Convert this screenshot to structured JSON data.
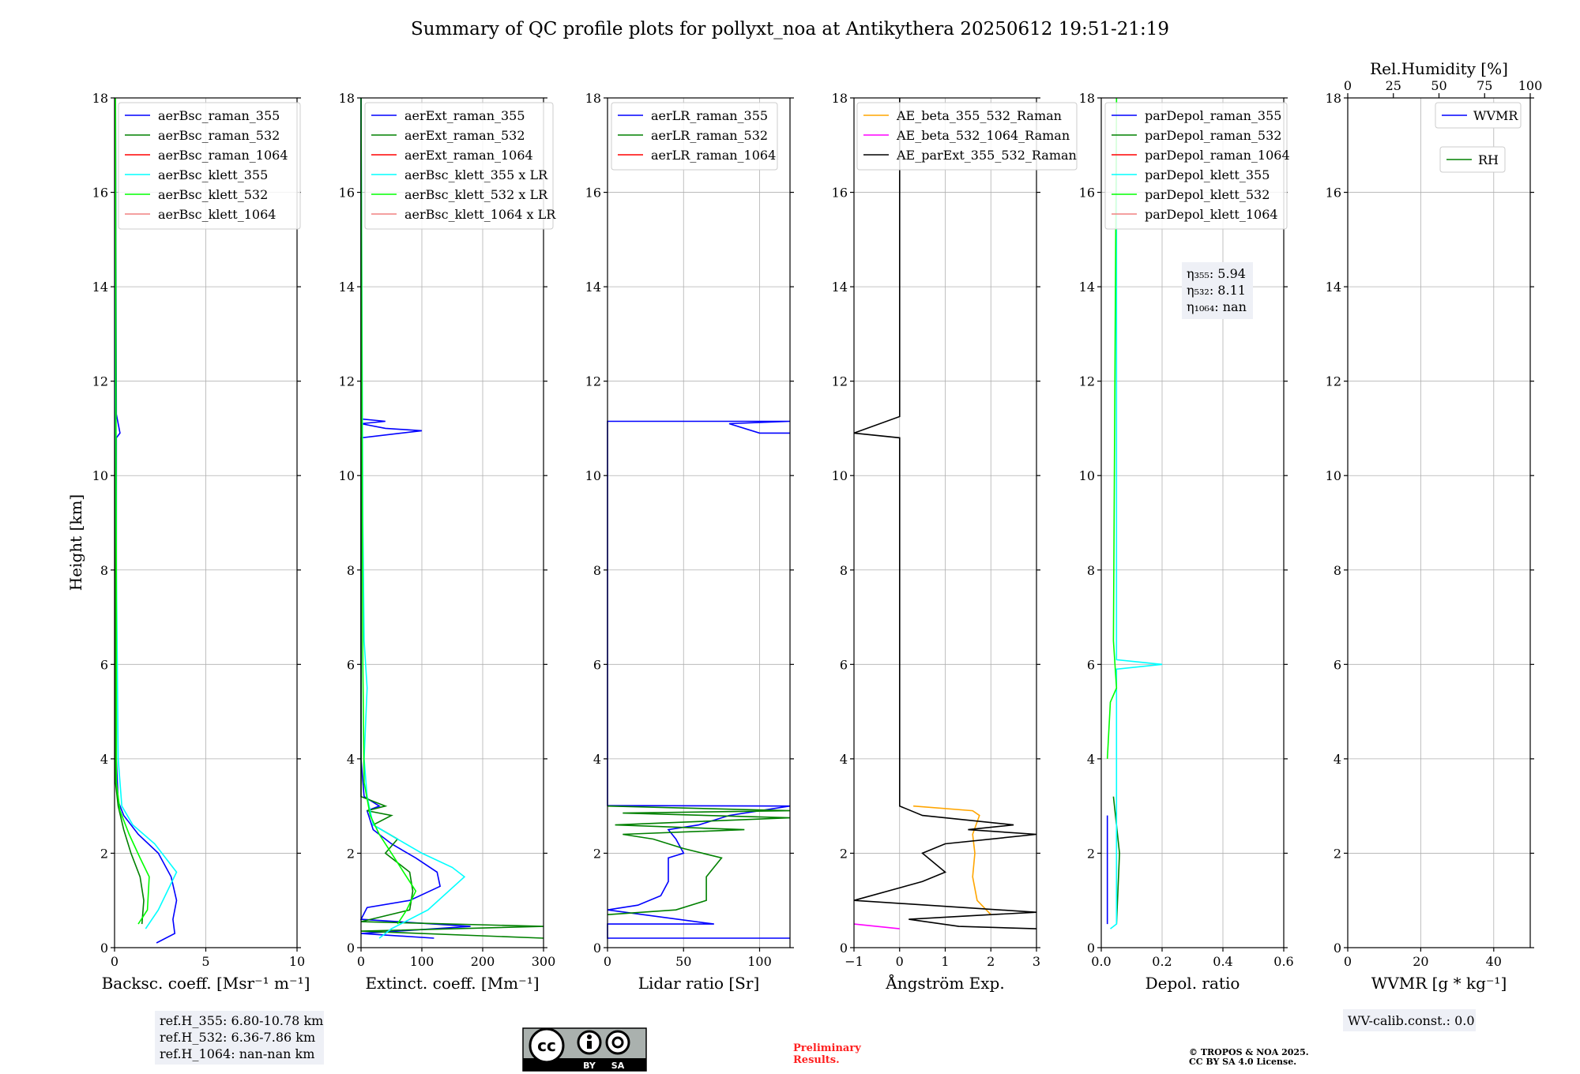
{
  "title": "Summary of QC profile plots for pollyxt_noa at Antikythera 20250612 19:51-21:19",
  "ylabel": "Height [km]",
  "y_ticks": [
    "0",
    "2",
    "4",
    "6",
    "8",
    "10",
    "12",
    "14",
    "16",
    "18"
  ],
  "ylim": [
    0,
    18
  ],
  "colors": {
    "raman_355": "#0000ff",
    "raman_532": "#008000",
    "raman_1064": "#ff0000",
    "klett_355": "#00ffff",
    "klett_532": "#00ff00",
    "klett_1064": "#f08080",
    "ae_beta_355_532": "#ffa500",
    "ae_beta_532_1064": "#ff00ff",
    "ae_parext": "#000000",
    "preliminary": "#ff0000"
  },
  "chart_data": [
    {
      "type": "line",
      "xlabel": "Backsc. coeff. [Msr⁻¹ m⁻¹]",
      "xlim": [
        0,
        10
      ],
      "x_ticks": [
        "0",
        "5",
        "10"
      ],
      "legend": [
        "aerBsc_raman_355",
        "aerBsc_raman_532",
        "aerBsc_raman_1064",
        "aerBsc_klett_355",
        "aerBsc_klett_532",
        "aerBsc_klett_1064"
      ],
      "series": [
        {
          "name": "aerBsc_raman_355",
          "color": "raman_355",
          "points": [
            [
              2.3,
              0.1
            ],
            [
              3.3,
              0.3
            ],
            [
              3.2,
              0.6
            ],
            [
              3.4,
              1.0
            ],
            [
              3.1,
              1.5
            ],
            [
              2.4,
              2.0
            ],
            [
              1.3,
              2.4
            ],
            [
              0.5,
              2.8
            ],
            [
              0.2,
              3.1
            ],
            [
              0.1,
              4
            ],
            [
              0.1,
              10.8
            ],
            [
              0.3,
              10.9
            ],
            [
              0.2,
              11.1
            ],
            [
              0.1,
              11.3
            ],
            [
              0.05,
              18
            ]
          ]
        },
        {
          "name": "aerBsc_raman_532",
          "color": "raman_532",
          "points": [
            [
              1.5,
              0.5
            ],
            [
              1.6,
              1.0
            ],
            [
              1.4,
              1.5
            ],
            [
              0.9,
              2.0
            ],
            [
              0.5,
              2.5
            ],
            [
              0.2,
              3.0
            ],
            [
              0.05,
              3.5
            ],
            [
              0.05,
              18
            ]
          ]
        },
        {
          "name": "aerBsc_klett_355",
          "color": "klett_355",
          "points": [
            [
              1.7,
              0.4
            ],
            [
              2.4,
              0.8
            ],
            [
              3.4,
              1.6
            ],
            [
              2.2,
              2.2
            ],
            [
              1.0,
              2.6
            ],
            [
              0.4,
              3.0
            ],
            [
              0.2,
              4.0
            ],
            [
              0.15,
              6.0
            ],
            [
              0.1,
              8.0
            ],
            [
              0.05,
              12.0
            ],
            [
              0.05,
              18
            ]
          ]
        },
        {
          "name": "aerBsc_klett_532",
          "color": "klett_532",
          "points": [
            [
              1.3,
              0.5
            ],
            [
              1.8,
              0.8
            ],
            [
              1.9,
              1.5
            ],
            [
              1.4,
              1.9
            ],
            [
              0.8,
              2.4
            ],
            [
              0.3,
              2.9
            ],
            [
              0.1,
              3.5
            ],
            [
              0.1,
              7.0
            ],
            [
              0.05,
              18
            ]
          ]
        }
      ],
      "annotation": [
        "ref.H_355: 6.80-10.78 km",
        "ref.H_532: 6.36-7.86 km",
        "ref.H_1064: nan-nan km"
      ]
    },
    {
      "type": "line",
      "xlabel": "Extinct. coeff. [Mm⁻¹]",
      "xlim": [
        0,
        300
      ],
      "x_ticks": [
        "0",
        "100",
        "200",
        "300"
      ],
      "legend": [
        "aerExt_raman_355",
        "aerExt_raman_532",
        "aerExt_raman_1064",
        "aerBsc_klett_355 x LR",
        "aerBsc_klett_532 x LR",
        "aerBsc_klett_1064 x LR"
      ],
      "series": [
        {
          "name": "aerExt_raman_355",
          "color": "raman_355",
          "points": [
            [
              120,
              0.2
            ],
            [
              0,
              0.3
            ],
            [
              180,
              0.45
            ],
            [
              0,
              0.6
            ],
            [
              10,
              0.85
            ],
            [
              80,
              1.0
            ],
            [
              130,
              1.3
            ],
            [
              125,
              1.6
            ],
            [
              90,
              1.9
            ],
            [
              50,
              2.2
            ],
            [
              20,
              2.5
            ],
            [
              10,
              2.9
            ],
            [
              30,
              3.0
            ],
            [
              5,
              3.2
            ],
            [
              0,
              4.0
            ],
            [
              0,
              10.8
            ],
            [
              100,
              10.95
            ],
            [
              40,
              11.0
            ],
            [
              0,
              11.1
            ],
            [
              40,
              11.15
            ],
            [
              0,
              11.2
            ],
            [
              0,
              18
            ]
          ]
        },
        {
          "name": "aerExt_raman_532",
          "color": "raman_532",
          "points": [
            [
              300,
              0.2
            ],
            [
              0,
              0.35
            ],
            [
              300,
              0.45
            ],
            [
              0,
              0.55
            ],
            [
              80,
              0.8
            ],
            [
              85,
              1.2
            ],
            [
              80,
              1.6
            ],
            [
              40,
              2.0
            ],
            [
              60,
              2.3
            ],
            [
              20,
              2.6
            ],
            [
              50,
              2.8
            ],
            [
              10,
              2.9
            ],
            [
              40,
              3.0
            ],
            [
              0,
              3.2
            ],
            [
              0,
              18
            ]
          ]
        },
        {
          "name": "aerBsc_klett_355 x LR",
          "color": "klett_355",
          "points": [
            [
              30,
              0.2
            ],
            [
              50,
              0.4
            ],
            [
              110,
              0.8
            ],
            [
              170,
              1.5
            ],
            [
              150,
              1.7
            ],
            [
              100,
              2.0
            ],
            [
              20,
              2.6
            ],
            [
              10,
              3.2
            ],
            [
              5,
              4.0
            ],
            [
              10,
              5.5
            ],
            [
              5,
              6.5
            ],
            [
              3,
              9.0
            ],
            [
              0,
              18
            ]
          ]
        },
        {
          "name": "aerBsc_klett_532 x LR",
          "color": "klett_532",
          "points": [
            [
              60,
              0.5
            ],
            [
              75,
              0.8
            ],
            [
              90,
              1.2
            ],
            [
              70,
              1.6
            ],
            [
              50,
              2.0
            ],
            [
              30,
              2.4
            ],
            [
              15,
              2.8
            ],
            [
              5,
              3.5
            ],
            [
              3,
              6.0
            ],
            [
              0,
              18
            ]
          ]
        }
      ]
    },
    {
      "type": "line",
      "xlabel": "Lidar ratio [Sr]",
      "xlim": [
        0,
        120
      ],
      "x_ticks": [
        "0",
        "50",
        "100"
      ],
      "legend": [
        "aerLR_raman_355",
        "aerLR_raman_532",
        "aerLR_raman_1064"
      ],
      "series": [
        {
          "name": "aerLR_raman_355",
          "color": "raman_355",
          "points": [
            [
              120,
              0.2
            ],
            [
              0,
              0.2
            ],
            [
              0,
              0.5
            ],
            [
              70,
              0.5
            ],
            [
              0,
              0.8
            ],
            [
              20,
              0.9
            ],
            [
              35,
              1.1
            ],
            [
              40,
              1.4
            ],
            [
              40,
              1.9
            ],
            [
              50,
              2.0
            ],
            [
              45,
              2.3
            ],
            [
              40,
              2.5
            ],
            [
              60,
              2.6
            ],
            [
              80,
              2.8
            ],
            [
              120,
              3.0
            ],
            [
              120,
              3.0
            ],
            [
              0,
              3.01
            ],
            [
              0,
              11.15
            ],
            [
              120,
              11.15
            ],
            [
              80,
              11.1
            ],
            [
              100,
              10.9
            ],
            [
              120,
              10.9
            ]
          ]
        },
        {
          "name": "aerLR_raman_532",
          "color": "raman_532",
          "points": [
            [
              0,
              0.7
            ],
            [
              45,
              0.8
            ],
            [
              65,
              1.0
            ],
            [
              65,
              1.5
            ],
            [
              75,
              1.9
            ],
            [
              50,
              2.1
            ],
            [
              30,
              2.3
            ],
            [
              10,
              2.4
            ],
            [
              90,
              2.5
            ],
            [
              5,
              2.6
            ],
            [
              120,
              2.75
            ],
            [
              10,
              2.85
            ],
            [
              120,
              2.9
            ],
            [
              0,
              3.0
            ]
          ]
        }
      ]
    },
    {
      "type": "line",
      "xlabel": "Ångström Exp.",
      "xlim": [
        -1,
        3
      ],
      "x_ticks": [
        "−1",
        "0",
        "1",
        "2",
        "3"
      ],
      "legend": [
        "AE_beta_355_532_Raman",
        "AE_beta_532_1064_Raman",
        "AE_parExt_355_532_Raman"
      ],
      "series": [
        {
          "name": "AE_beta_355_532_Raman",
          "color": "ae_beta_355_532",
          "points": [
            [
              2.0,
              0.7
            ],
            [
              1.7,
              1.0
            ],
            [
              1.6,
              1.5
            ],
            [
              1.65,
              2.0
            ],
            [
              1.6,
              2.4
            ],
            [
              1.75,
              2.8
            ],
            [
              1.6,
              2.9
            ],
            [
              0.3,
              3.0
            ]
          ]
        },
        {
          "name": "AE_beta_532_1064_Raman",
          "color": "ae_beta_532_1064",
          "points": [
            [
              -1.0,
              0.5
            ],
            [
              0.0,
              0.4
            ]
          ]
        },
        {
          "name": "AE_parExt_355_532_Raman",
          "color": "ae_parext",
          "points": [
            [
              3.0,
              0.4
            ],
            [
              1.3,
              0.45
            ],
            [
              0.2,
              0.6
            ],
            [
              2.0,
              0.7
            ],
            [
              3.0,
              0.75
            ],
            [
              -1.0,
              1.0
            ],
            [
              0.5,
              1.4
            ],
            [
              1.0,
              1.6
            ],
            [
              0.5,
              2.0
            ],
            [
              1.0,
              2.2
            ],
            [
              3.0,
              2.4
            ],
            [
              1.5,
              2.5
            ],
            [
              2.5,
              2.6
            ],
            [
              0.5,
              2.8
            ],
            [
              0.0,
              3.0
            ],
            [
              0,
              3.0
            ],
            [
              0,
              10.8
            ],
            [
              -1.0,
              10.9
            ],
            [
              0,
              11.25
            ],
            [
              0,
              18
            ]
          ]
        }
      ]
    },
    {
      "type": "line",
      "xlabel": "Depol. ratio",
      "xlim": [
        0.0,
        0.6
      ],
      "x_ticks": [
        "0.0",
        "0.2",
        "0.4",
        "0.6"
      ],
      "legend": [
        "parDepol_raman_355",
        "parDepol_raman_532",
        "parDepol_raman_1064",
        "parDepol_klett_355",
        "parDepol_klett_532",
        "parDepol_klett_1064"
      ],
      "series": [
        {
          "name": "parDepol_raman_355",
          "color": "raman_355",
          "points": [
            [
              0.02,
              0.5
            ],
            [
              0.02,
              2.8
            ]
          ]
        },
        {
          "name": "parDepol_raman_532",
          "color": "raman_532",
          "points": [
            [
              0.05,
              0.5
            ],
            [
              0.06,
              2.0
            ],
            [
              0.04,
              3.2
            ]
          ]
        },
        {
          "name": "parDepol_klett_355",
          "color": "klett_355",
          "points": [
            [
              0.03,
              0.4
            ],
            [
              0.05,
              0.5
            ],
            [
              0.05,
              5.9
            ],
            [
              0.2,
              6.0
            ],
            [
              0.05,
              6.1
            ],
            [
              0.05,
              18
            ]
          ]
        },
        {
          "name": "parDepol_klett_532",
          "color": "klett_532",
          "points": [
            [
              0.02,
              4.0
            ],
            [
              0.03,
              5.2
            ],
            [
              0.05,
              5.5
            ],
            [
              0.04,
              6.5
            ],
            [
              0.05,
              18
            ]
          ]
        }
      ],
      "annotation": [
        "η₃₅₅: 5.94",
        "η₅₃₂: 8.11",
        "η₁₀₆₄: nan"
      ]
    },
    {
      "type": "line",
      "xlabel": "WVMR [g * kg⁻¹]",
      "xlim": [
        0,
        50
      ],
      "x_ticks": [
        "0",
        "20",
        "40"
      ],
      "x2label": "Rel.Humidity [%]",
      "x2_ticks": [
        "0",
        "25",
        "50",
        "75",
        "100"
      ],
      "legend": [
        "WVMR",
        "RH"
      ],
      "series": [],
      "annotation": [
        "WV-calib.const.: 0.0"
      ]
    }
  ],
  "footer": {
    "cc_by": "BY",
    "cc_sa": "SA",
    "preliminary_line1": "Preliminary",
    "preliminary_line2": "Results.",
    "copyright_line1": "© TROPOS & NOA 2025.",
    "copyright_line2": "CC BY SA 4.0 License."
  }
}
